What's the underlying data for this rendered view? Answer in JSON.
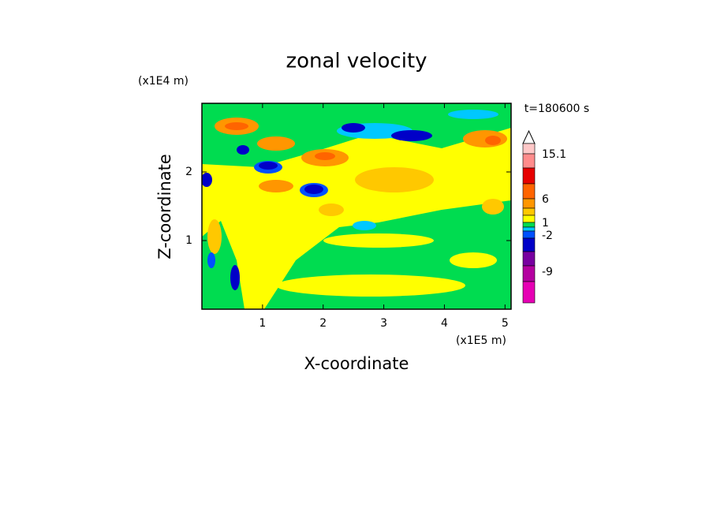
{
  "chart_data": {
    "type": "contour",
    "title": "zonal velocity",
    "x_label": "X-coordinate",
    "y_label": "Z-coordinate",
    "x_unit": "(x1E5 m)",
    "y_unit": "(x1E4 m)",
    "time_label": "t=180600 s",
    "xlim": [
      0,
      5.1
    ],
    "ylim": [
      0,
      3
    ],
    "xticks": [
      1,
      2,
      3,
      4,
      5
    ],
    "yticks": [
      1,
      2
    ],
    "colorbar": {
      "colors": [
        "#ffc8c8",
        "#ff8c8c",
        "#e60000",
        "#ff6400",
        "#ff9600",
        "#ffc800",
        "#ffff00",
        "#00dc50",
        "#00c8ff",
        "#0050ff",
        "#0000c8",
        "#7800a0",
        "#b400a0",
        "#e600b4"
      ],
      "ticks": [
        15.1,
        6,
        1,
        -2,
        -9
      ]
    }
  }
}
